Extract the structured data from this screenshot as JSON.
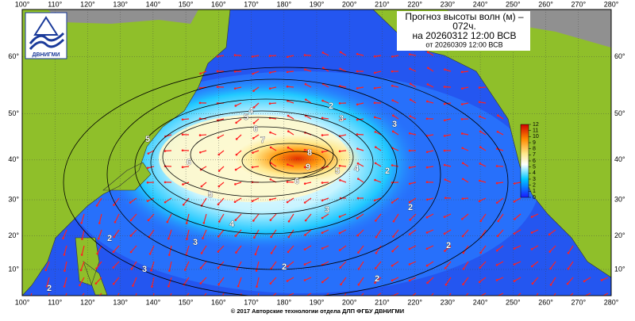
{
  "logo": "ДВНИГМИ",
  "title": {
    "line1": "Прогноз высоты волн (м) –",
    "line2": "072ч.",
    "line3": "на 20260312 12:00 ВСВ",
    "line4": "от 20260309 12:00 ВСВ"
  },
  "footer": "© 2017 Авторские технологии отдела ДЛП ФГБУ ДВНИГМИ",
  "map": {
    "xlim": [
      100,
      280
    ],
    "ylim": [
      2,
      66.5
    ],
    "xticks": [
      {
        "value": 100,
        "label": "100°"
      },
      {
        "value": 110,
        "label": "110°"
      },
      {
        "value": 120,
        "label": "120°"
      },
      {
        "value": 130,
        "label": "130°"
      },
      {
        "value": 140,
        "label": "140°"
      },
      {
        "value": 150,
        "label": "150°"
      },
      {
        "value": 160,
        "label": "160°"
      },
      {
        "value": 170,
        "label": "170°"
      },
      {
        "value": 180,
        "label": "180°"
      },
      {
        "value": 190,
        "label": "190°"
      },
      {
        "value": 200,
        "label": "200°"
      },
      {
        "value": 210,
        "label": "210°"
      },
      {
        "value": 220,
        "label": "220°"
      },
      {
        "value": 230,
        "label": "230°"
      },
      {
        "value": 240,
        "label": "240°"
      },
      {
        "value": 250,
        "label": "250°"
      },
      {
        "value": 260,
        "label": "260°"
      },
      {
        "value": 270,
        "label": "270°"
      },
      {
        "value": 280,
        "label": "280°"
      }
    ],
    "yticks": [
      {
        "value": 10,
        "label": "10°"
      },
      {
        "value": 20,
        "label": "20°"
      },
      {
        "value": 30,
        "label": "30°"
      },
      {
        "value": 40,
        "label": "40°"
      },
      {
        "value": 50,
        "label": "50°"
      },
      {
        "value": 60,
        "label": "60°"
      }
    ],
    "grid": true
  },
  "colorbar": {
    "lim": [
      0,
      12
    ],
    "ticks": [
      0,
      1,
      2,
      3,
      4,
      5,
      6,
      7,
      8,
      9,
      10,
      11,
      12
    ]
  },
  "contour_labels": [
    "4",
    "5",
    "6",
    "7",
    "6",
    "8",
    "9",
    "6",
    "5",
    "4",
    "5",
    "4",
    "3",
    "3",
    "2",
    "2",
    "2",
    "2",
    "2",
    "3",
    "3",
    "2",
    "2",
    "3",
    "2",
    "5"
  ]
}
